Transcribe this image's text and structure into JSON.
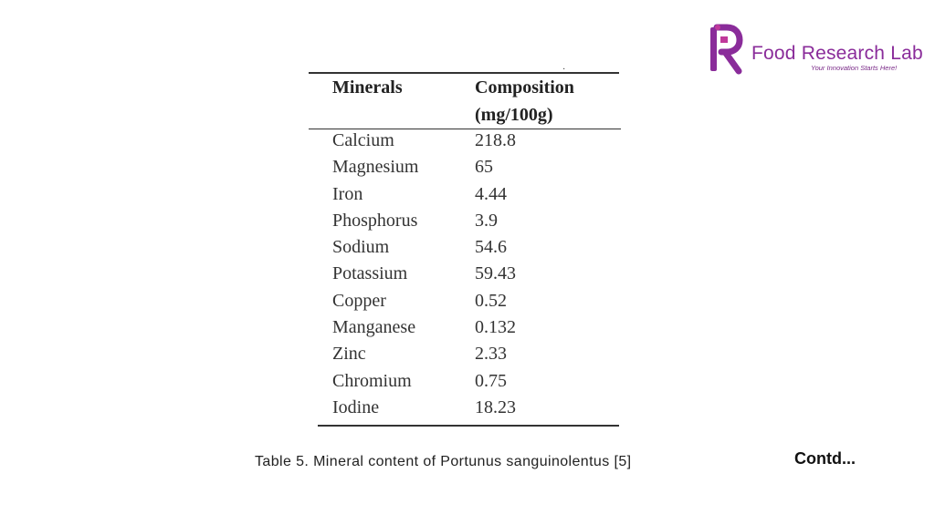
{
  "logo": {
    "name": "Food Research Lab",
    "tagline": "Your Innovation Starts Here!",
    "colors": {
      "primary": "#8a2c9a",
      "accent": "#c0399b"
    }
  },
  "table": {
    "headers": {
      "minerals": "Minerals",
      "composition": "Composition",
      "unit": "(mg/100g)"
    },
    "rows": [
      {
        "mineral": "Calcium",
        "value": "218.8"
      },
      {
        "mineral": "Magnesium",
        "value": "65"
      },
      {
        "mineral": "Iron",
        "value": "4.44"
      },
      {
        "mineral": "Phosphorus",
        "value": "3.9"
      },
      {
        "mineral": "Sodium",
        "value": "54.6"
      },
      {
        "mineral": "Potassium",
        "value": "59.43"
      },
      {
        "mineral": "Copper",
        "value": "0.52"
      },
      {
        "mineral": "Manganese",
        "value": "0.132"
      },
      {
        "mineral": "Zinc",
        "value": "2.33"
      },
      {
        "mineral": "Chromium",
        "value": "0.75"
      },
      {
        "mineral": "Iodine",
        "value": "18.23"
      }
    ]
  },
  "caption": "Table 5. Mineral content of Portunus sanguinolentus [5]",
  "contd": "Contd..."
}
